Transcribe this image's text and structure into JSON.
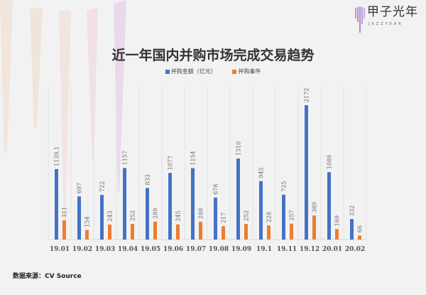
{
  "logo": {
    "name": "甲子光年",
    "sub": "JAZZYEAR"
  },
  "chart_data": {
    "type": "bar",
    "title": "近一年国内并购市场完成交易趋势",
    "categories": [
      "19.01",
      "19.02",
      "19.03",
      "19.04",
      "19.05",
      "19.06",
      "19.07",
      "19.08",
      "19.09",
      "19.1",
      "19.11",
      "19.12",
      "20.01",
      "20.02"
    ],
    "series": [
      {
        "name": "并购金额（亿元）",
        "color": "#4472c4",
        "values": [
          1139.1,
          697,
          722,
          1157,
          833,
          1077,
          1154,
          678,
          1310,
          945,
          725,
          2172,
          1089,
          332
        ],
        "labels": [
          "1139.1",
          "697",
          "722",
          "1157",
          "833",
          "1077",
          "1154",
          "678",
          "1310",
          "945",
          "725",
          "2172",
          "1089",
          "332"
        ]
      },
      {
        "name": "并购事件",
        "color": "#ed7d31",
        "values": [
          311,
          154,
          243,
          252,
          289,
          245,
          288,
          217,
          252,
          228,
          257,
          389,
          169,
          66
        ],
        "labels": [
          "311",
          "154",
          "243",
          "252",
          "289",
          "245",
          "288",
          "217",
          "252",
          "228",
          "257",
          "389",
          "169",
          "66"
        ]
      }
    ],
    "ylim": [
      0,
      2300
    ],
    "legend": "top",
    "grid": "vertical category separators",
    "data_labels": "rotated above bars"
  },
  "source": "数据来源：CV Source"
}
